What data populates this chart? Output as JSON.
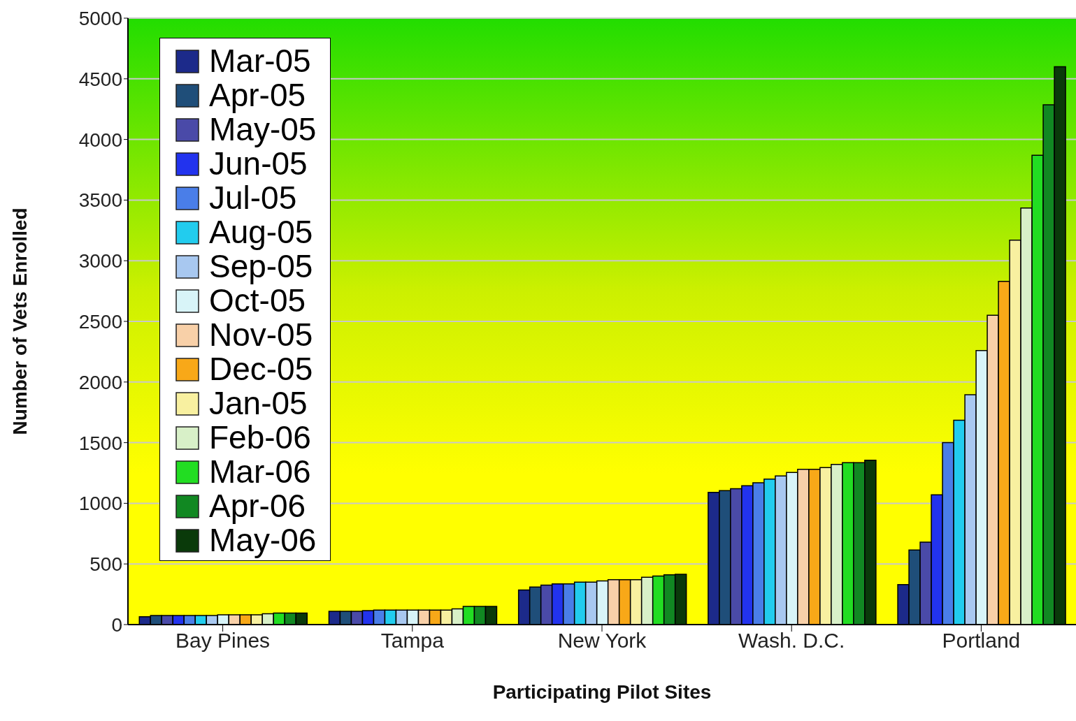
{
  "chart_data": {
    "type": "bar",
    "xlabel": "Participating Pilot Sites",
    "ylabel": "Number of Vets Enrolled",
    "categories": [
      "Bay Pines",
      "Tampa",
      "New York",
      "Wash. D.C.",
      "Portland"
    ],
    "ylim": [
      0,
      5000
    ],
    "yticks": [
      0,
      500,
      1000,
      1500,
      2000,
      2500,
      3000,
      3500,
      4000,
      4500,
      5000
    ],
    "grid": "y",
    "legend": "top left",
    "series": [
      {
        "name": "Mar-05",
        "color": "#1c2a8a",
        "values": [
          65,
          110,
          285,
          1090,
          330
        ]
      },
      {
        "name": "Apr-05",
        "color": "#1f4e79",
        "values": [
          75,
          110,
          310,
          1105,
          615
        ]
      },
      {
        "name": "May-05",
        "color": "#4a4aa8",
        "values": [
          75,
          110,
          325,
          1120,
          680
        ]
      },
      {
        "name": "Jun-05",
        "color": "#2233ee",
        "values": [
          75,
          115,
          335,
          1145,
          1070
        ]
      },
      {
        "name": "Jul-05",
        "color": "#4a7ee8",
        "values": [
          75,
          120,
          335,
          1170,
          1500
        ]
      },
      {
        "name": "Aug-05",
        "color": "#22ccee",
        "values": [
          75,
          120,
          350,
          1200,
          1685
        ]
      },
      {
        "name": "Sep-05",
        "color": "#a8c8f0",
        "values": [
          75,
          120,
          350,
          1225,
          1895
        ]
      },
      {
        "name": "Oct-05",
        "color": "#d8f4f8",
        "values": [
          80,
          120,
          360,
          1255,
          2260
        ]
      },
      {
        "name": "Nov-05",
        "color": "#f8d0a8",
        "values": [
          80,
          120,
          370,
          1280,
          2550
        ]
      },
      {
        "name": "Dec-05",
        "color": "#f8a818",
        "values": [
          80,
          120,
          370,
          1280,
          2830
        ]
      },
      {
        "name": "Jan-05",
        "color": "#f8f0a0",
        "values": [
          80,
          120,
          370,
          1295,
          3170
        ]
      },
      {
        "name": "Feb-06",
        "color": "#d8f0c8",
        "values": [
          90,
          130,
          390,
          1320,
          3435
        ]
      },
      {
        "name": "Mar-06",
        "color": "#22dd22",
        "values": [
          95,
          150,
          400,
          1335,
          3870
        ]
      },
      {
        "name": "Apr-06",
        "color": "#118822",
        "values": [
          95,
          150,
          410,
          1335,
          4285
        ]
      },
      {
        "name": "May-06",
        "color": "#0a3a0a",
        "values": [
          95,
          150,
          415,
          1355,
          4600
        ]
      }
    ]
  }
}
